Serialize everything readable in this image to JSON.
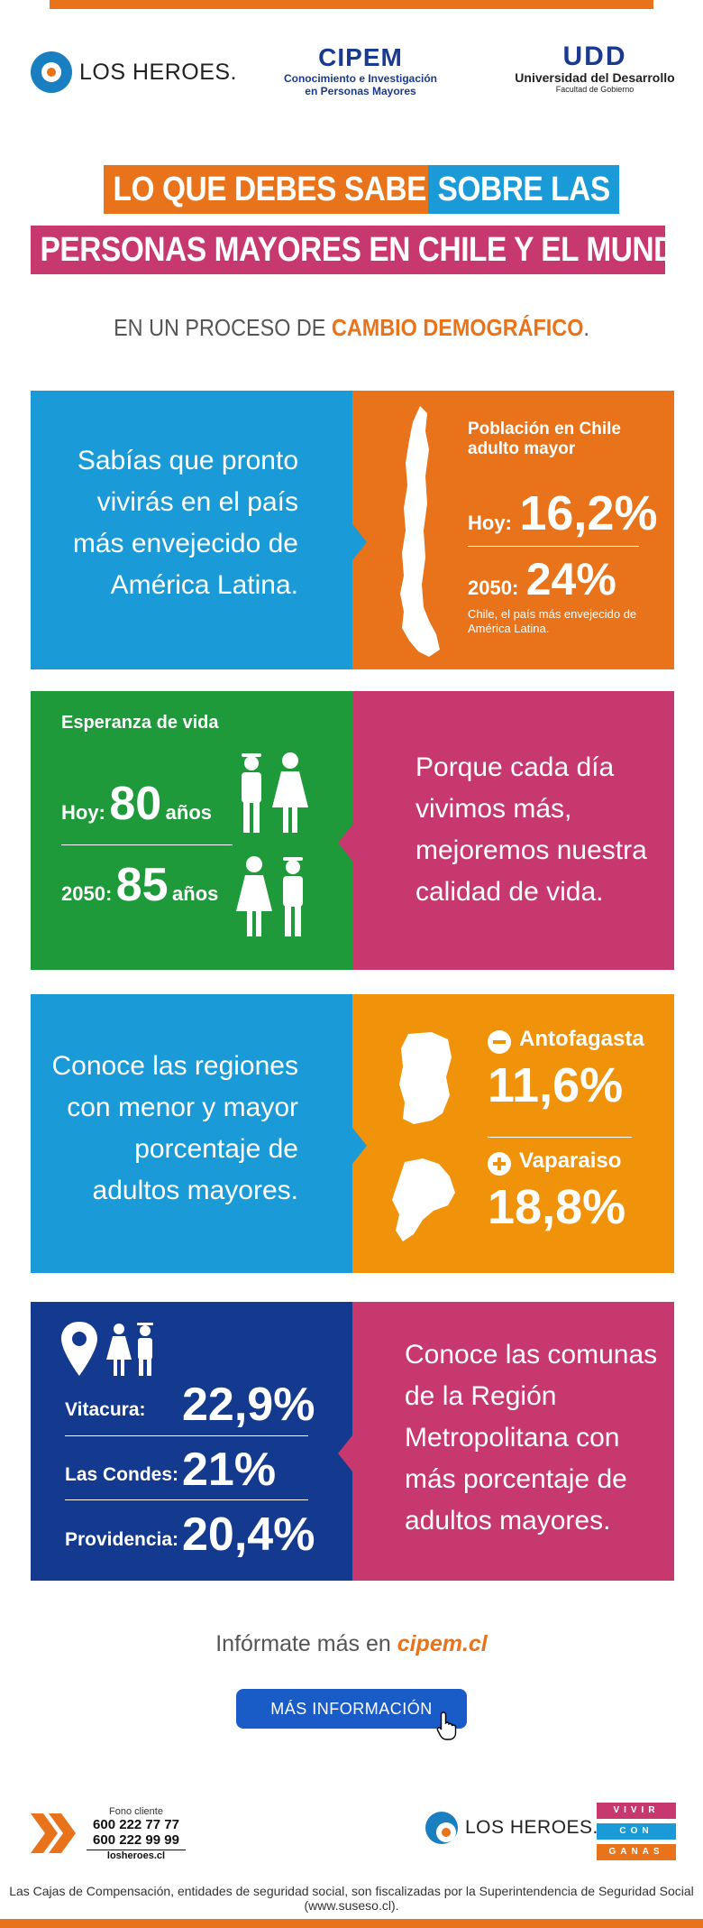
{
  "header": {
    "logo_losheroes": "LOS HEROES.",
    "cipem_title": "CIPEM",
    "cipem_sub1": "Conocimiento e Investigación",
    "cipem_sub2": "en Personas Mayores",
    "udd_mark": "UDD",
    "udd_name": "Universidad del Desarrollo",
    "udd_faculty": "Facultad de Gobierno"
  },
  "title": {
    "line1a": "LO QUE DEBES SABER",
    "line1b": "SOBRE LAS",
    "line2": "PERSONAS MAYORES EN CHILE Y EL MUNDO",
    "subtitle_prefix": "EN UN PROCESO DE ",
    "subtitle_bold": "CAMBIO DEMOGRÁFICO",
    "subtitle_suffix": "."
  },
  "panel1": {
    "text_lines": [
      "Sabías que pronto",
      "vivirás en el país",
      "más envejecido de",
      "América Latina."
    ],
    "heading1": "Población en Chile",
    "heading2": "adulto mayor",
    "today_label": "Hoy:",
    "today_value": "16,2%",
    "future_label": "2050:",
    "future_value": "24%",
    "note1": "Chile, el país más envejecido de",
    "note2": "América Latina."
  },
  "panel2": {
    "heading": "Esperanza de vida",
    "today_label": "Hoy:",
    "today_value": "80",
    "today_unit": "años",
    "future_label": "2050:",
    "future_value": "85",
    "future_unit": "años",
    "text_lines": [
      "Porque cada día",
      "vivimos más,",
      "mejoremos nuestra",
      "calidad de vida."
    ]
  },
  "panel3": {
    "text_lines": [
      "Conoce las regiones",
      "con menor y mayor",
      "porcentaje de",
      "adultos mayores."
    ],
    "region1_name": "Antofagasta",
    "region1_value": "11,6%",
    "region2_name": "Vaparaiso",
    "region2_value": "18,8%"
  },
  "panel4": {
    "rows": [
      {
        "label": "Vitacura:",
        "value": "22,9%"
      },
      {
        "label": "Las Condes:",
        "value": "21%"
      },
      {
        "label": "Providencia:",
        "value": "20,4%"
      }
    ],
    "text_lines": [
      "Conoce las comunas",
      "de la Región",
      "Metropolitana con",
      "más porcentaje de",
      "adultos mayores."
    ]
  },
  "more": {
    "prefix": "Infórmate más en ",
    "link": "cipem.cl",
    "button": "MÁS INFORMACIÓN"
  },
  "footer": {
    "fono_label": "Fono cliente",
    "phone1": "600 222 77 77",
    "phone2": "600 222 99 99",
    "site": "losheroes.cl",
    "logo": "LOS HEROES.",
    "vcg": [
      "VIVIR",
      "CON",
      "GANAS"
    ],
    "disclaimer": "Las Cajas de Compensación, entidades de seguridad social, son fiscalizadas por la Superintendencia de Seguridad Social (www.suseso.cl)."
  },
  "colors": {
    "orange": "#e8731a",
    "blue": "#1a9ad6",
    "pink": "#c7386e",
    "green": "#1f9a3a",
    "amber": "#f0930a",
    "navy": "#133a8e"
  }
}
